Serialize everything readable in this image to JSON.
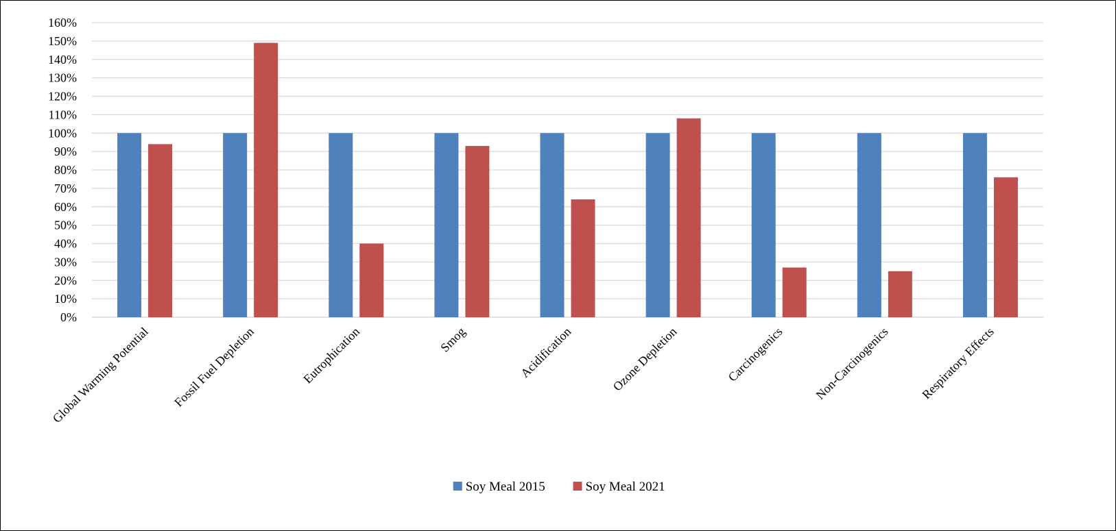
{
  "chart_data": {
    "type": "bar",
    "title": "",
    "xlabel": "",
    "ylabel": "",
    "ylim": [
      0,
      160
    ],
    "y_tick_step": 10,
    "y_tick_suffix": "%",
    "grid": true,
    "legend_position": "bottom-center",
    "categories": [
      "Global Warming Potential",
      "Fossil Fuel Depletion",
      "Eutrophication",
      "Smog",
      "Acidification",
      "Ozone Depletion",
      "Carcinogenics",
      "Non-Carcinogenics",
      "Respiratory Effects"
    ],
    "series": [
      {
        "name": "Soy Meal 2015",
        "color": "#4F81BD",
        "values": [
          100,
          100,
          100,
          100,
          100,
          100,
          100,
          100,
          100
        ]
      },
      {
        "name": "Soy Meal 2021",
        "color": "#C0504D",
        "values": [
          94,
          149,
          40,
          93,
          64,
          108,
          27,
          25,
          76
        ]
      }
    ]
  }
}
